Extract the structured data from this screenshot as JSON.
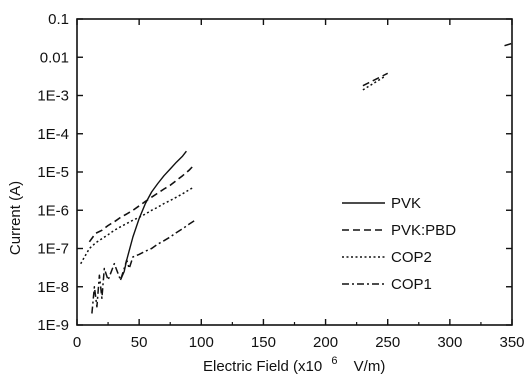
{
  "chart_data": {
    "type": "line",
    "xlabel_main": "Electric Field (x10",
    "xlabel_exp": "6",
    "xlabel_unit": "V/m)",
    "ylabel": "Current (A)",
    "xlim": [
      0,
      350
    ],
    "ylim": [
      1e-09,
      0.1
    ],
    "yscale": "log",
    "grid": false,
    "legend_position": "right-middle",
    "x_ticks": [
      {
        "value": 0,
        "label": "0"
      },
      {
        "value": 50,
        "label": "50"
      },
      {
        "value": 100,
        "label": "100"
      },
      {
        "value": 150,
        "label": "150"
      },
      {
        "value": 200,
        "label": "200"
      },
      {
        "value": 250,
        "label": "250"
      },
      {
        "value": 300,
        "label": "300"
      },
      {
        "value": 350,
        "label": "350"
      }
    ],
    "y_ticks": [
      {
        "value": 0.1,
        "label": "0.1"
      },
      {
        "value": 0.01,
        "label": "0.01"
      },
      {
        "value": 0.001,
        "label": "1E-3"
      },
      {
        "value": 0.0001,
        "label": "1E-4"
      },
      {
        "value": 1e-05,
        "label": "1E-5"
      },
      {
        "value": 1e-06,
        "label": "1E-6"
      },
      {
        "value": 1e-07,
        "label": "1E-7"
      },
      {
        "value": 1e-08,
        "label": "1E-8"
      },
      {
        "value": 1e-09,
        "label": "1E-9"
      }
    ],
    "series": [
      {
        "name": "PVK",
        "style": "solid",
        "x": [
          35,
          38,
          40,
          45,
          50,
          55,
          60,
          65,
          70,
          75,
          80,
          85,
          88
        ],
        "y": [
          1.5e-08,
          2.5e-08,
          5e-08,
          2e-07,
          6e-07,
          1.5e-06,
          3e-06,
          5e-06,
          8e-06,
          1.2e-05,
          1.8e-05,
          2.6e-05,
          3.5e-05
        ]
      },
      {
        "name": "PVK:PBD",
        "style": "dashed",
        "x": [
          10,
          15,
          20,
          25,
          30,
          35,
          40,
          45,
          50,
          55,
          60,
          65,
          70,
          75,
          80,
          85,
          90,
          94
        ],
        "y": [
          1.5e-07,
          2.5e-07,
          3e-07,
          4e-07,
          5e-07,
          6.5e-07,
          8e-07,
          1e-06,
          1.3e-06,
          1.7e-06,
          2.2e-06,
          2.8e-06,
          3.6e-06,
          4.5e-06,
          6e-06,
          8e-06,
          1.1e-05,
          1.5e-05
        ]
      },
      {
        "name": "COP2",
        "style": "dotted",
        "x": [
          3,
          6,
          10,
          15,
          20,
          25,
          30,
          35,
          40,
          45,
          50,
          55,
          60,
          65,
          70,
          75,
          80,
          85,
          90,
          94
        ],
        "y": [
          4e-08,
          6e-08,
          1e-07,
          1.4e-07,
          1.8e-07,
          2.3e-07,
          3e-07,
          3.7e-07,
          4.5e-07,
          5.5e-07,
          6.5e-07,
          8e-07,
          1e-06,
          1.2e-06,
          1.5e-06,
          1.8e-06,
          2.2e-06,
          2.7e-06,
          3.4e-06,
          4e-06
        ]
      },
      {
        "name": "COP1",
        "style": "dashdot",
        "x": [
          12,
          14,
          16,
          18,
          20,
          22,
          25,
          30,
          35,
          38,
          40,
          42,
          45,
          50,
          55,
          60,
          65,
          70,
          75,
          80,
          85,
          90,
          95
        ],
        "y": [
          2e-09,
          1e-08,
          3e-09,
          2e-08,
          5e-09,
          3e-08,
          1.5e-08,
          4e-08,
          1.5e-08,
          3e-08,
          5e-08,
          3e-08,
          6e-08,
          7e-08,
          8.5e-08,
          1e-07,
          1.3e-07,
          1.6e-07,
          2e-07,
          2.6e-07,
          3.3e-07,
          4.3e-07,
          5.5e-07
        ]
      }
    ],
    "fragments": [
      {
        "style": "dashed",
        "x": [
          230,
          250
        ],
        "y": [
          0.0018,
          0.0038
        ]
      },
      {
        "style": "dotted",
        "x": [
          230,
          248
        ],
        "y": [
          0.0014,
          0.0032
        ]
      },
      {
        "style": "dashed",
        "x": [
          344,
          350
        ],
        "y": [
          0.02,
          0.023
        ]
      }
    ]
  }
}
